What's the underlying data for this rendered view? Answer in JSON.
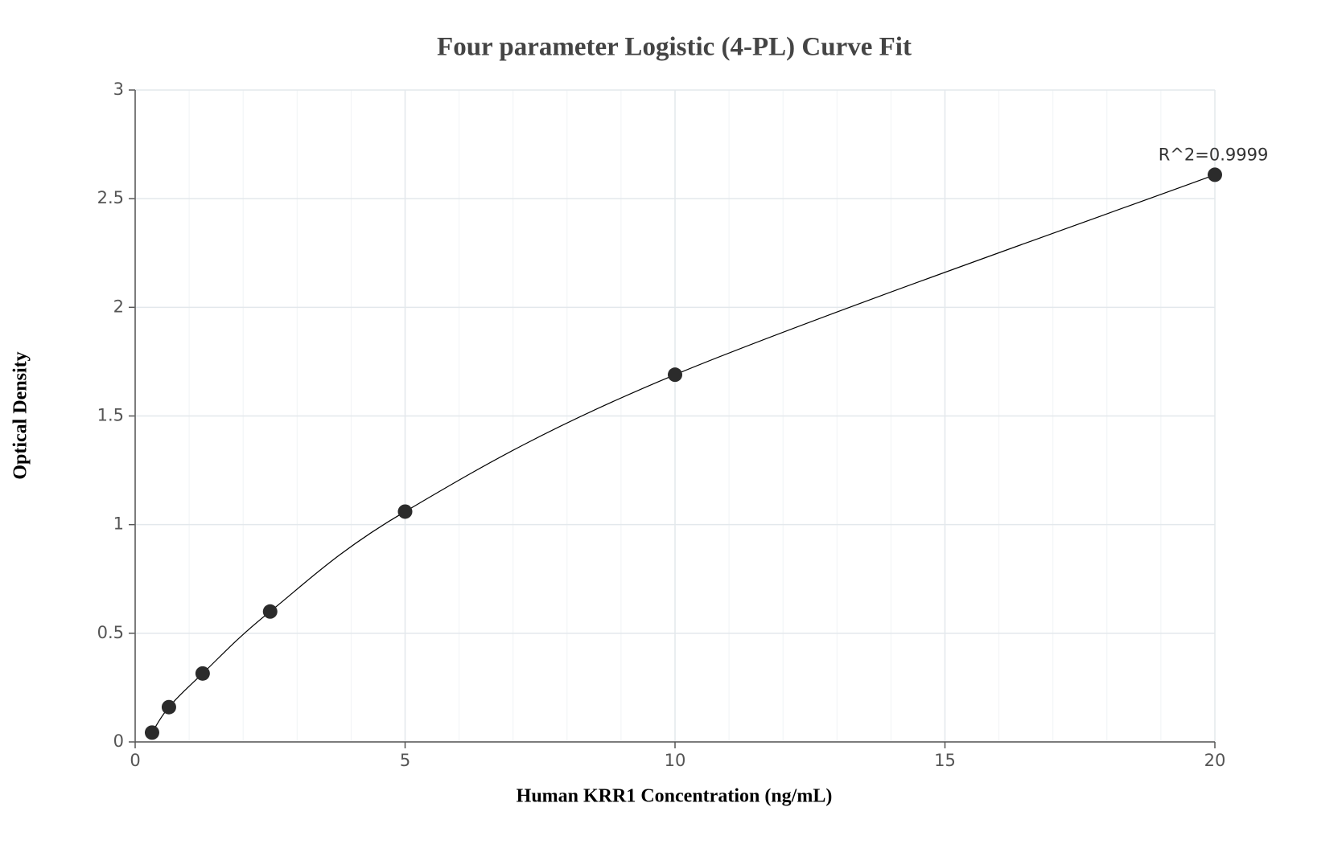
{
  "chart_data": {
    "type": "scatter",
    "title": "Four parameter Logistic (4-PL) Curve Fit",
    "x_label": "Human KRR1 Concentration (ng/mL)",
    "y_label": "Optical Density",
    "annotation": "R^2=0.9999",
    "series": [
      {
        "color": "#2b2b2b",
        "x": [
          0.3125,
          0.625,
          1.25,
          2.5,
          5,
          10,
          20
        ],
        "values": [
          0.043,
          0.16,
          0.315,
          0.6,
          1.06,
          1.69,
          2.61
        ]
      }
    ],
    "xlim": [
      0,
      20
    ],
    "xticks": [
      0,
      5,
      10,
      15,
      20
    ],
    "xminorticks": [
      1,
      2,
      3,
      4,
      6,
      7,
      8,
      9,
      11,
      12,
      13,
      14,
      16,
      17,
      18,
      19
    ],
    "ylim": [
      0,
      3
    ],
    "yticks": [
      0,
      0.5,
      1,
      1.5,
      2,
      2.5,
      3
    ],
    "grid": true,
    "curve_color": "#000000"
  }
}
